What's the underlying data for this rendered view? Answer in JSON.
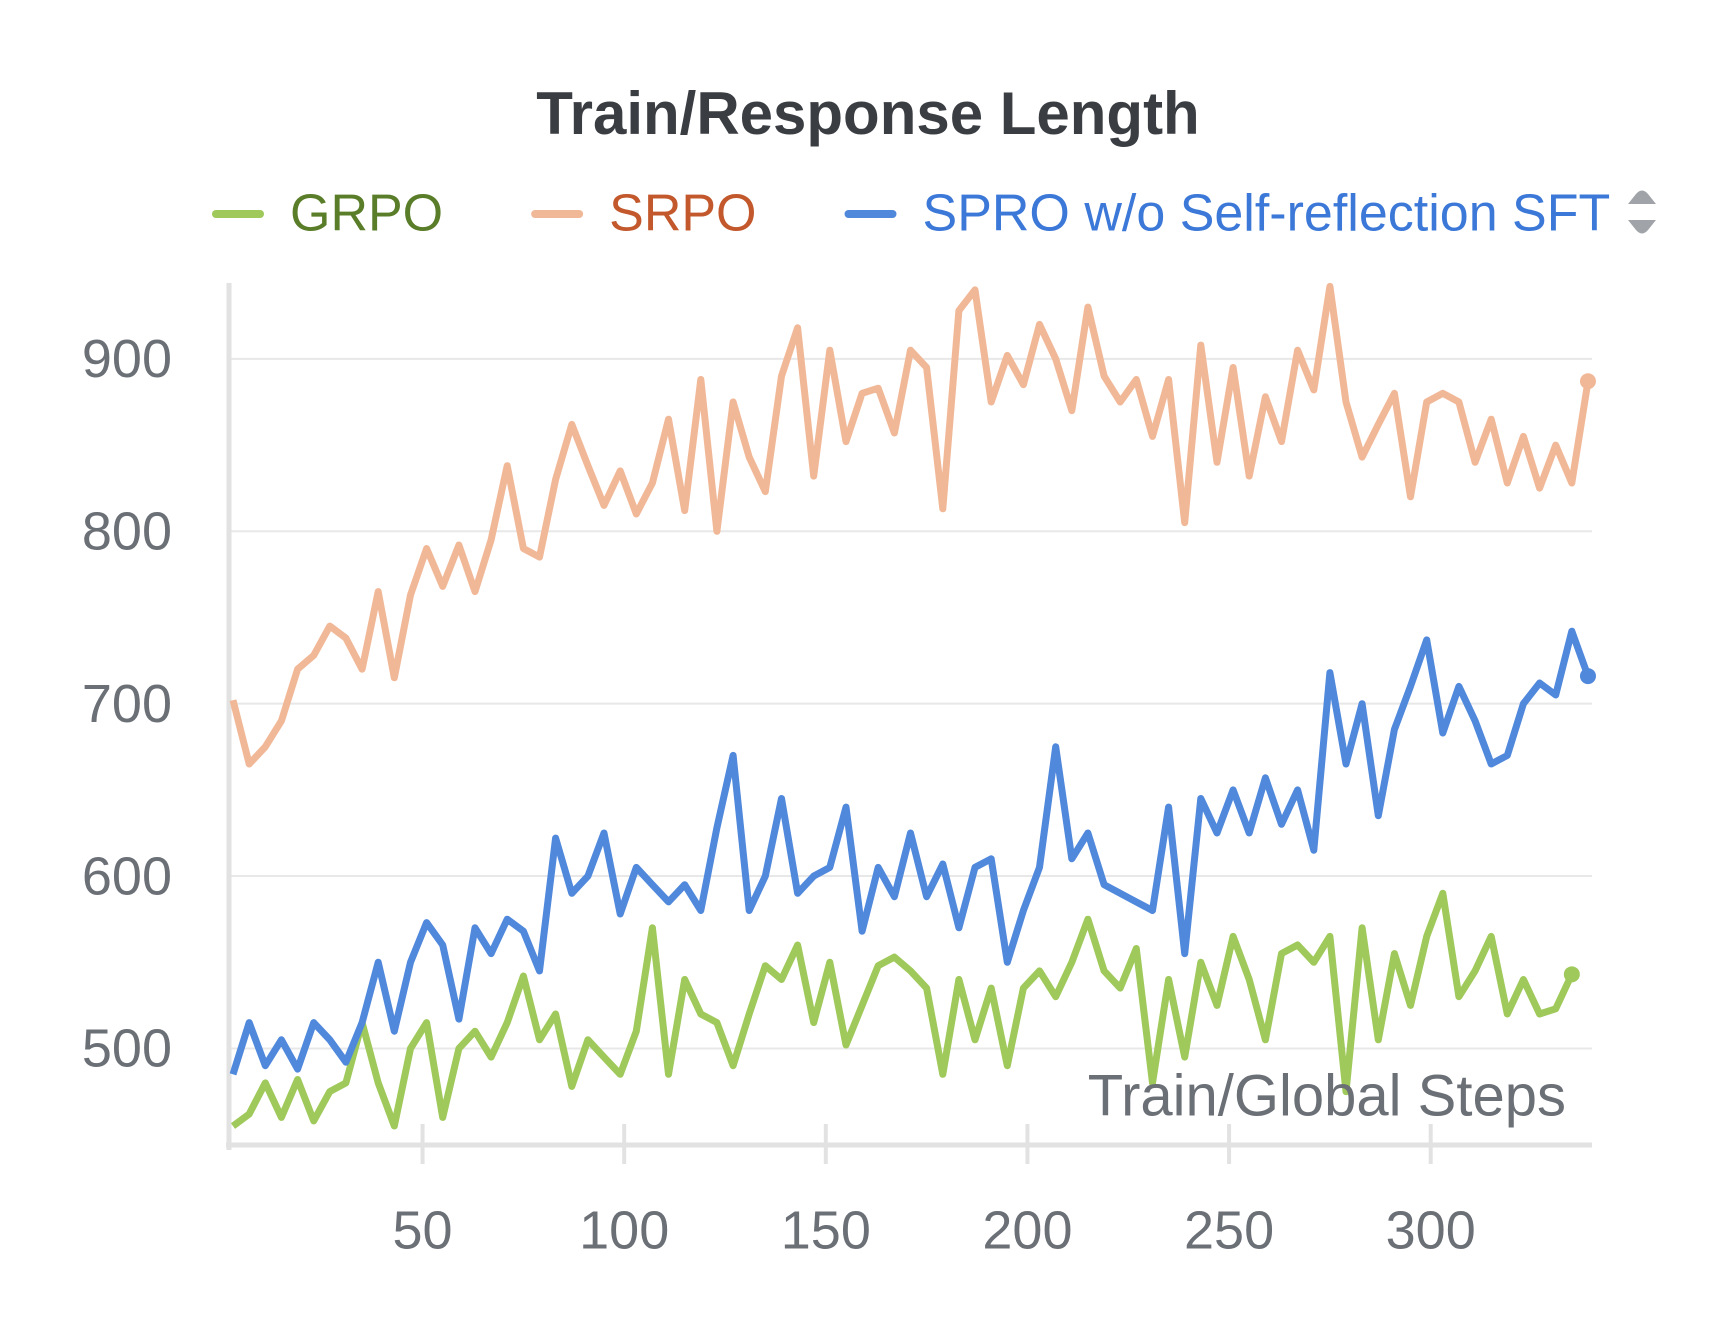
{
  "chart_data": {
    "type": "line",
    "title": "Train/Response Length",
    "x_label": "Train/Global Steps",
    "x": [
      3,
      7,
      11,
      15,
      19,
      23,
      27,
      31,
      35,
      39,
      43,
      47,
      51,
      55,
      59,
      63,
      67,
      71,
      75,
      79,
      83,
      87,
      91,
      95,
      99,
      103,
      107,
      111,
      115,
      119,
      123,
      127,
      131,
      135,
      139,
      143,
      147,
      151,
      155,
      159,
      163,
      167,
      171,
      175,
      179,
      183,
      187,
      191,
      195,
      199,
      203,
      207,
      211,
      215,
      219,
      223,
      227,
      231,
      235,
      239,
      243,
      247,
      251,
      255,
      259,
      263,
      267,
      271,
      275,
      279,
      283,
      287,
      291,
      295,
      299,
      303,
      307,
      311,
      315,
      319,
      323,
      327,
      331,
      335,
      339
    ],
    "series": [
      {
        "name": "GRPO",
        "color": "#9fc95a",
        "label_color": "#5a7d2a",
        "values": [
          455,
          462,
          480,
          460,
          482,
          458,
          475,
          480,
          515,
          480,
          455,
          500,
          515,
          460,
          500,
          510,
          495,
          515,
          542,
          505,
          520,
          478,
          505,
          495,
          485,
          510,
          570,
          485,
          540,
          520,
          515,
          490,
          520,
          548,
          540,
          560,
          515,
          550,
          502,
          525,
          548,
          553,
          545,
          535,
          485,
          540,
          505,
          535,
          490,
          535,
          545,
          530,
          550,
          575,
          545,
          535,
          558,
          480,
          540,
          495,
          550,
          525,
          565,
          540,
          505,
          555,
          560,
          550,
          565,
          475,
          570,
          505,
          555,
          525,
          565,
          590,
          530,
          545,
          565,
          520,
          540,
          520,
          523,
          543,
          null
        ]
      },
      {
        "name": "SRPO",
        "color": "#f1b898",
        "label_color": "#c2582c",
        "values": [
          702,
          665,
          675,
          690,
          720,
          728,
          745,
          738,
          720,
          765,
          715,
          763,
          790,
          768,
          792,
          765,
          795,
          838,
          790,
          785,
          830,
          862,
          838,
          815,
          835,
          810,
          828,
          865,
          812,
          888,
          800,
          875,
          843,
          823,
          890,
          918,
          832,
          905,
          852,
          880,
          883,
          857,
          905,
          895,
          813,
          928,
          940,
          875,
          902,
          885,
          920,
          900,
          870,
          930,
          890,
          875,
          888,
          855,
          888,
          805,
          908,
          840,
          895,
          832,
          878,
          852,
          905,
          882,
          942,
          875,
          843,
          862,
          880,
          820,
          875,
          880,
          875,
          840,
          865,
          828,
          855,
          825,
          850,
          828,
          887
        ]
      },
      {
        "name": "SPRO w/o Self-reflection SFT",
        "color": "#5088dc",
        "label_color": "#3b78d8",
        "values": [
          485,
          515,
          490,
          505,
          488,
          515,
          505,
          492,
          515,
          550,
          510,
          550,
          573,
          560,
          517,
          570,
          555,
          575,
          568,
          545,
          622,
          590,
          600,
          625,
          578,
          605,
          595,
          585,
          595,
          580,
          628,
          670,
          580,
          600,
          645,
          590,
          600,
          605,
          640,
          568,
          605,
          588,
          625,
          588,
          607,
          570,
          605,
          610,
          550,
          580,
          605,
          675,
          610,
          625,
          595,
          590,
          585,
          580,
          640,
          555,
          645,
          625,
          650,
          625,
          657,
          630,
          650,
          615,
          718,
          665,
          700,
          635,
          685,
          710,
          737,
          683,
          710,
          690,
          665,
          670,
          700,
          712,
          705,
          742,
          716
        ]
      }
    ],
    "xlim": [
      2,
      340
    ],
    "ylim": [
      444,
      944
    ],
    "xticks": [
      50,
      100,
      150,
      200,
      250,
      300
    ],
    "yticks": [
      500,
      600,
      700,
      800,
      900
    ],
    "grid": true
  }
}
